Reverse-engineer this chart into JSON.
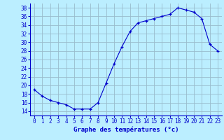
{
  "hours": [
    0,
    1,
    2,
    3,
    4,
    5,
    6,
    7,
    8,
    9,
    10,
    11,
    12,
    13,
    14,
    15,
    16,
    17,
    18,
    19,
    20,
    21,
    22,
    23
  ],
  "temps": [
    19.0,
    17.5,
    16.5,
    16.0,
    15.5,
    14.5,
    14.5,
    14.5,
    16.0,
    20.5,
    25.0,
    29.0,
    32.5,
    34.5,
    35.0,
    35.5,
    36.0,
    36.5,
    38.0,
    37.5,
    37.0,
    35.5,
    29.5,
    28.0
  ],
  "line_color": "#0000cc",
  "marker": "+",
  "bg_color": "#bbeeff",
  "grid_color": "#99bbcc",
  "xlabel": "Graphe des températures (°c)",
  "xlabel_color": "#0000cc",
  "tick_color": "#0000cc",
  "axis_color": "#0000cc",
  "ylim": [
    13,
    39
  ],
  "yticks": [
    14,
    16,
    18,
    20,
    22,
    24,
    26,
    28,
    30,
    32,
    34,
    36,
    38
  ],
  "xlim": [
    -0.5,
    23.5
  ],
  "xticks": [
    0,
    1,
    2,
    3,
    4,
    5,
    6,
    7,
    8,
    9,
    10,
    11,
    12,
    13,
    14,
    15,
    16,
    17,
    18,
    19,
    20,
    21,
    22,
    23
  ],
  "tick_fontsize": 5.5,
  "xlabel_fontsize": 6.5
}
